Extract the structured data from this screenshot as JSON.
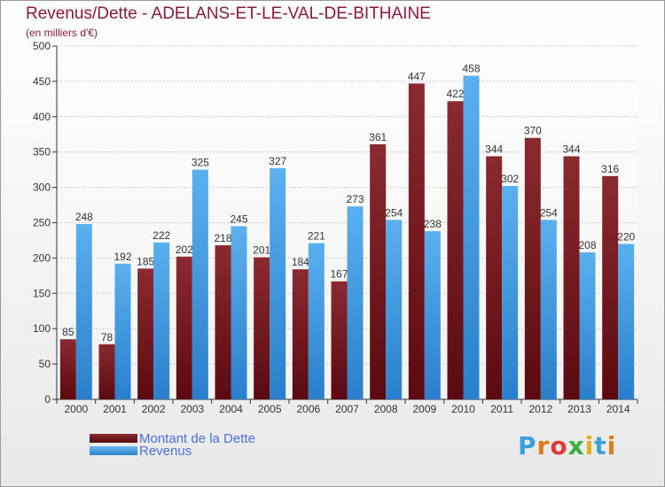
{
  "title": "Revenus/Dette - ADELANS-ET-LE-VAL-DE-BITHAINE",
  "subtitle": "(en milliers d'€)",
  "colors": {
    "debt": "#7a1a22",
    "revenue": "#4aa3e6",
    "title": "#8a1a3a"
  },
  "logo": {
    "text": "Proxiti",
    "letters": [
      "P",
      "r",
      "o",
      "x",
      "i",
      "t",
      "i"
    ],
    "colors": [
      "#3aa0e0",
      "#e07a1a",
      "#e03a3a",
      "#3ab03a",
      "#e0b020",
      "#3aa0e0",
      "#e07a1a"
    ]
  },
  "chart_data": {
    "type": "bar",
    "categories": [
      "2000",
      "2001",
      "2002",
      "2003",
      "2004",
      "2005",
      "2006",
      "2007",
      "2008",
      "2009",
      "2010",
      "2011",
      "2012",
      "2013",
      "2014"
    ],
    "series": [
      {
        "name": "Montant de la Dette",
        "values": [
          85,
          78,
          185,
          202,
          218,
          201,
          184,
          167,
          361,
          447,
          422,
          344,
          370,
          344,
          316
        ]
      },
      {
        "name": "Revenus",
        "values": [
          248,
          192,
          222,
          325,
          245,
          327,
          221,
          273,
          254,
          238,
          458,
          302,
          254,
          208,
          220
        ]
      }
    ],
    "ylim": [
      0,
      500
    ],
    "yticks": [
      0,
      50,
      100,
      150,
      200,
      250,
      300,
      350,
      400,
      450,
      500
    ],
    "grid": true,
    "legend": "bottom-left"
  }
}
